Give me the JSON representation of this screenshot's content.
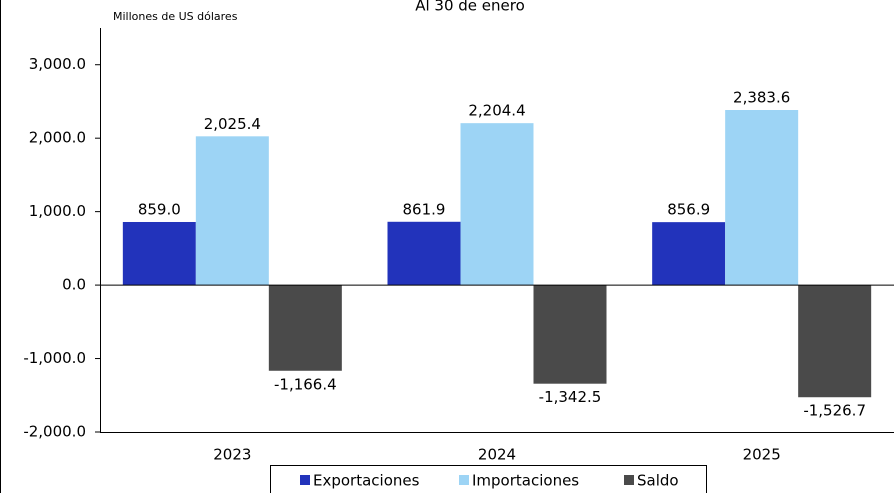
{
  "chart_data": {
    "type": "bar",
    "title": "Al 30 de enero",
    "y_label": "Millones de US dólares",
    "categories": [
      "2023",
      "2024",
      "2025"
    ],
    "series": [
      {
        "name": "Exportaciones",
        "color": "#2233bb",
        "values": [
          859.0,
          861.9,
          856.9
        ],
        "value_labels": [
          "859.0",
          "861.9",
          "856.9"
        ]
      },
      {
        "name": "Importaciones",
        "color": "#9dd4f5",
        "values": [
          2025.4,
          2204.4,
          2383.6
        ],
        "value_labels": [
          "2,025.4",
          "2,204.4",
          "2,383.6"
        ]
      },
      {
        "name": "Saldo",
        "color": "#4a4a4a",
        "values": [
          -1166.4,
          -1342.5,
          -1526.7
        ],
        "value_labels": [
          "-1,166.4",
          "-1,342.5",
          "-1,526.7"
        ]
      }
    ],
    "ylim": [
      -2000,
      3500
    ],
    "yticks": [
      {
        "value": -2000,
        "label": "-2,000.0"
      },
      {
        "value": -1000,
        "label": "-1,000.0"
      },
      {
        "value": 0,
        "label": "0.0"
      },
      {
        "value": 1000,
        "label": "1,000.0"
      },
      {
        "value": 2000,
        "label": "2,000.0"
      },
      {
        "value": 3000,
        "label": "3,000.0"
      }
    ],
    "legend": "bottom"
  }
}
